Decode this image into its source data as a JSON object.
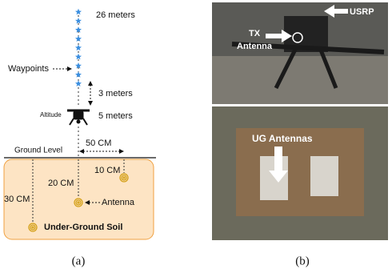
{
  "diagram": {
    "caption": "(a)",
    "top_altitude": "26 meters",
    "waypoints_label": "Waypoints",
    "waypoint_spacing": "3 meters",
    "drone_label": "Altitude",
    "drone_altitude": "5 meters",
    "ground_label": "Ground Level",
    "horizontal_spacing": "50 CM",
    "depths": [
      "10 CM",
      "20 CM",
      "30 CM"
    ],
    "antenna_label": "Antenna",
    "soil_label": "Under-Ground Soil"
  },
  "photos": {
    "caption": "(b)",
    "usrp_label": "USRP",
    "tx_antenna_label": [
      "TX",
      "Antenna"
    ],
    "ug_label": "UG Antennas"
  }
}
